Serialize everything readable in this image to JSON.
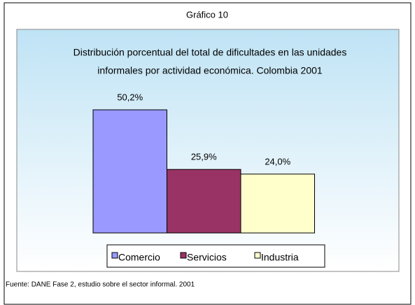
{
  "chart_data": {
    "type": "bar",
    "header": "Gráfico 10",
    "title": [
      "Distribución porcentual del total de dificultades en las unidades",
      "informales por actividad económica.  Colombia 2001"
    ],
    "categories": [
      "Comercio",
      "Servicios",
      "Industria"
    ],
    "series": [
      {
        "name": "Comercio",
        "color": "#9999ff"
      },
      {
        "name": "Servicios",
        "color": "#993366"
      },
      {
        "name": "Industria",
        "color": "#ffffcc"
      }
    ],
    "values": [
      50.2,
      25.9,
      24.0
    ],
    "value_labels": [
      "50,2%",
      "25,9%",
      "24,0%"
    ],
    "source": "Fuente: DANE Fase 2, estudio sobre el sector informal. 2001"
  }
}
